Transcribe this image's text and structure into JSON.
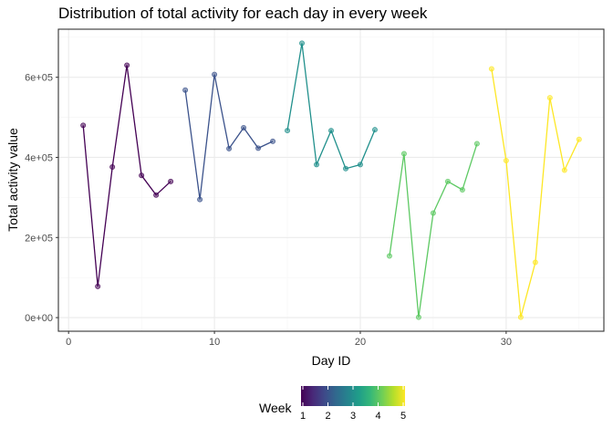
{
  "chart_data": {
    "type": "line",
    "title": "Distribution of total activity for each day in every week",
    "xlabel": "Day ID",
    "ylabel": "Total activity value",
    "xlim": [
      -0.7,
      36.7
    ],
    "ylim": [
      -34000,
      720000
    ],
    "x_ticks": [
      0,
      10,
      20,
      30
    ],
    "y_ticks": [
      0,
      200000,
      400000,
      600000
    ],
    "y_tick_labels": [
      "0e+00",
      "2e+05",
      "4e+05",
      "6e+05"
    ],
    "grid": true,
    "series": [
      {
        "week": 1,
        "color": "#440154",
        "x": [
          1,
          2,
          3,
          4,
          5,
          6,
          7
        ],
        "y": [
          480000,
          78000,
          376000,
          630000,
          355000,
          306000,
          340000
        ]
      },
      {
        "week": 2,
        "color": "#3b528b",
        "x": [
          8,
          9,
          10,
          11,
          12,
          13,
          14
        ],
        "y": [
          568000,
          295000,
          607000,
          422000,
          474000,
          423000,
          440000
        ]
      },
      {
        "week": 3,
        "color": "#21908c",
        "x": [
          15,
          16,
          17,
          18,
          19,
          20,
          21
        ],
        "y": [
          467000,
          685000,
          382000,
          467000,
          372000,
          382000,
          469000
        ]
      },
      {
        "week": 4,
        "color": "#5dc963",
        "x": [
          22,
          23,
          24,
          25,
          26,
          27,
          28
        ],
        "y": [
          154000,
          409000,
          1000,
          261000,
          340000,
          319000,
          434000
        ]
      },
      {
        "week": 5,
        "color": "#fde725",
        "x": [
          29,
          30,
          31,
          32,
          33,
          34,
          35
        ],
        "y": [
          621000,
          392000,
          1000,
          138000,
          549000,
          368000,
          445000
        ]
      }
    ],
    "legend": {
      "title": "Week",
      "position": "bottom",
      "type": "colorbar",
      "ticks": [
        1,
        2,
        3,
        4,
        5
      ],
      "colors": [
        "#440154",
        "#482878",
        "#3e4989",
        "#31688e",
        "#26828e",
        "#1f9e89",
        "#35b779",
        "#6ece58",
        "#b5de2b",
        "#fde725"
      ]
    }
  }
}
